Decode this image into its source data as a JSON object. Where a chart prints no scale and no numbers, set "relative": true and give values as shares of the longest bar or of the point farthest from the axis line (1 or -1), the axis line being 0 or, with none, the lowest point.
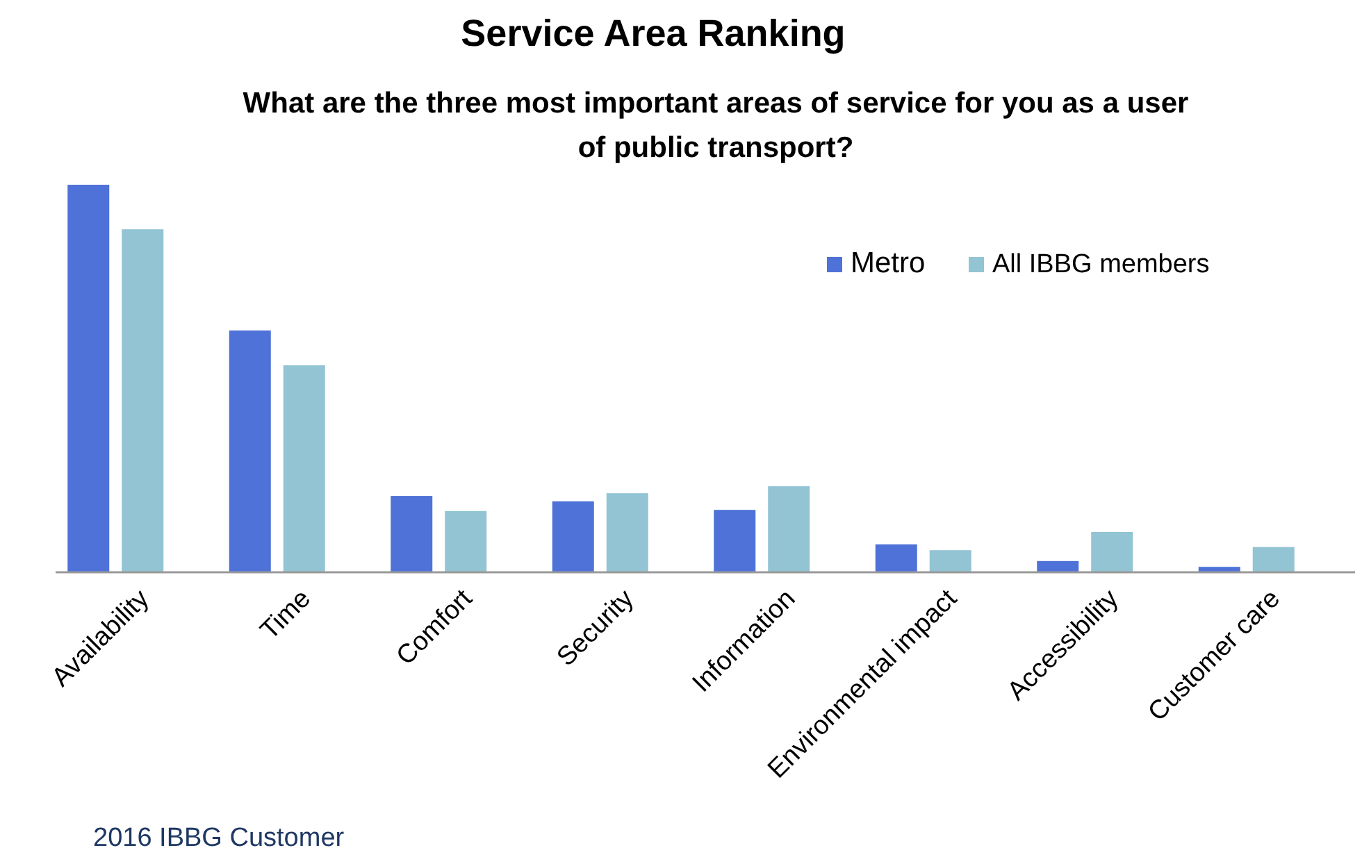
{
  "chart_data": {
    "type": "bar",
    "title": "Service Area Ranking",
    "subtitle": "What are the three most important areas of service for you as a user of public transport?",
    "relative": true,
    "categories": [
      "Availability",
      "Time",
      "Comfort",
      "Security",
      "Information",
      "Environmental impact",
      "Accessibility",
      "Customer care"
    ],
    "series": [
      {
        "name": "Metro",
        "color": "#4f72d9",
        "values": [
          1,
          0.624,
          0.197,
          0.183,
          0.161,
          0.072,
          0.029,
          0.014
        ]
      },
      {
        "name": "All IBBG members",
        "color": "#92c4d4",
        "values": [
          0.885,
          0.534,
          0.158,
          0.204,
          0.222,
          0.057,
          0.104,
          0.065
        ]
      }
    ],
    "legend": "top right",
    "grid": false,
    "annotations": [
      "2016 IBBG Customer"
    ]
  }
}
